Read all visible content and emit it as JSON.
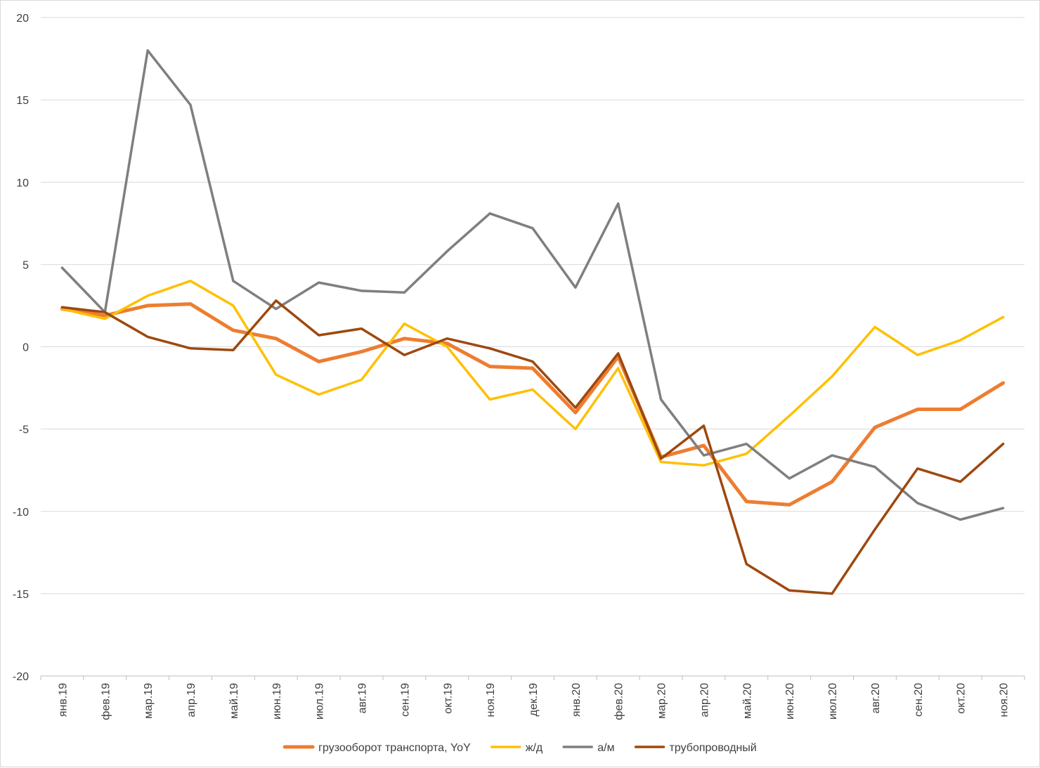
{
  "chart_data": {
    "type": "line",
    "categories": [
      "янв.19",
      "фев.19",
      "мар.19",
      "апр.19",
      "май.19",
      "июн.19",
      "июл.19",
      "авг.19",
      "сен.19",
      "окт.19",
      "ноя.19",
      "дек.19",
      "янв.20",
      "фев.20",
      "мар.20",
      "апр.20",
      "май.20",
      "июн.20",
      "июл.20",
      "авг.20",
      "сен.20",
      "окт.20",
      "ноя.20"
    ],
    "ylim": [
      -20,
      20
    ],
    "yticks": [
      20,
      15,
      10,
      5,
      0,
      -5,
      -10,
      -15,
      -20
    ],
    "grid": true,
    "legend_position": "bottom",
    "series": [
      {
        "name": "грузооборот транспорта, YoY",
        "color": "#ED7D31",
        "width": 5,
        "values": [
          2.3,
          1.9,
          2.5,
          2.6,
          1.0,
          0.5,
          -0.9,
          -0.3,
          0.5,
          0.2,
          -1.2,
          -1.3,
          -4.0,
          -0.6,
          -6.7,
          -6.0,
          -9.4,
          -9.6,
          -8.2,
          -4.9,
          -3.8,
          -3.8,
          -2.2
        ]
      },
      {
        "name": "ж/д",
        "color": "#FFC000",
        "width": 3.5,
        "values": [
          2.3,
          1.7,
          3.1,
          4.0,
          2.5,
          -1.7,
          -2.9,
          -2.0,
          1.4,
          0.0,
          -3.2,
          -2.6,
          -5.0,
          -1.3,
          -7.0,
          -7.2,
          -6.5,
          -4.2,
          -1.8,
          1.2,
          -0.5,
          0.4,
          1.8
        ]
      },
      {
        "name": "а/м",
        "color": "#7F7F7F",
        "width": 3.5,
        "values": [
          4.8,
          2.1,
          18.0,
          14.7,
          4.0,
          2.3,
          3.9,
          3.4,
          3.3,
          5.8,
          8.1,
          7.2,
          3.6,
          8.7,
          -3.2,
          -6.6,
          -5.9,
          -8.0,
          -6.6,
          -7.3,
          -9.5,
          -10.5,
          -9.8
        ]
      },
      {
        "name": "трубопроводный",
        "color": "#9E480E",
        "width": 3.5,
        "values": [
          2.4,
          2.1,
          0.6,
          -0.1,
          -0.2,
          2.8,
          0.7,
          1.1,
          -0.5,
          0.5,
          -0.1,
          -0.9,
          -3.7,
          -0.4,
          -6.8,
          -4.8,
          -13.2,
          -14.8,
          -15.0,
          -11.1,
          -7.4,
          -8.2,
          -5.9
        ]
      }
    ]
  }
}
